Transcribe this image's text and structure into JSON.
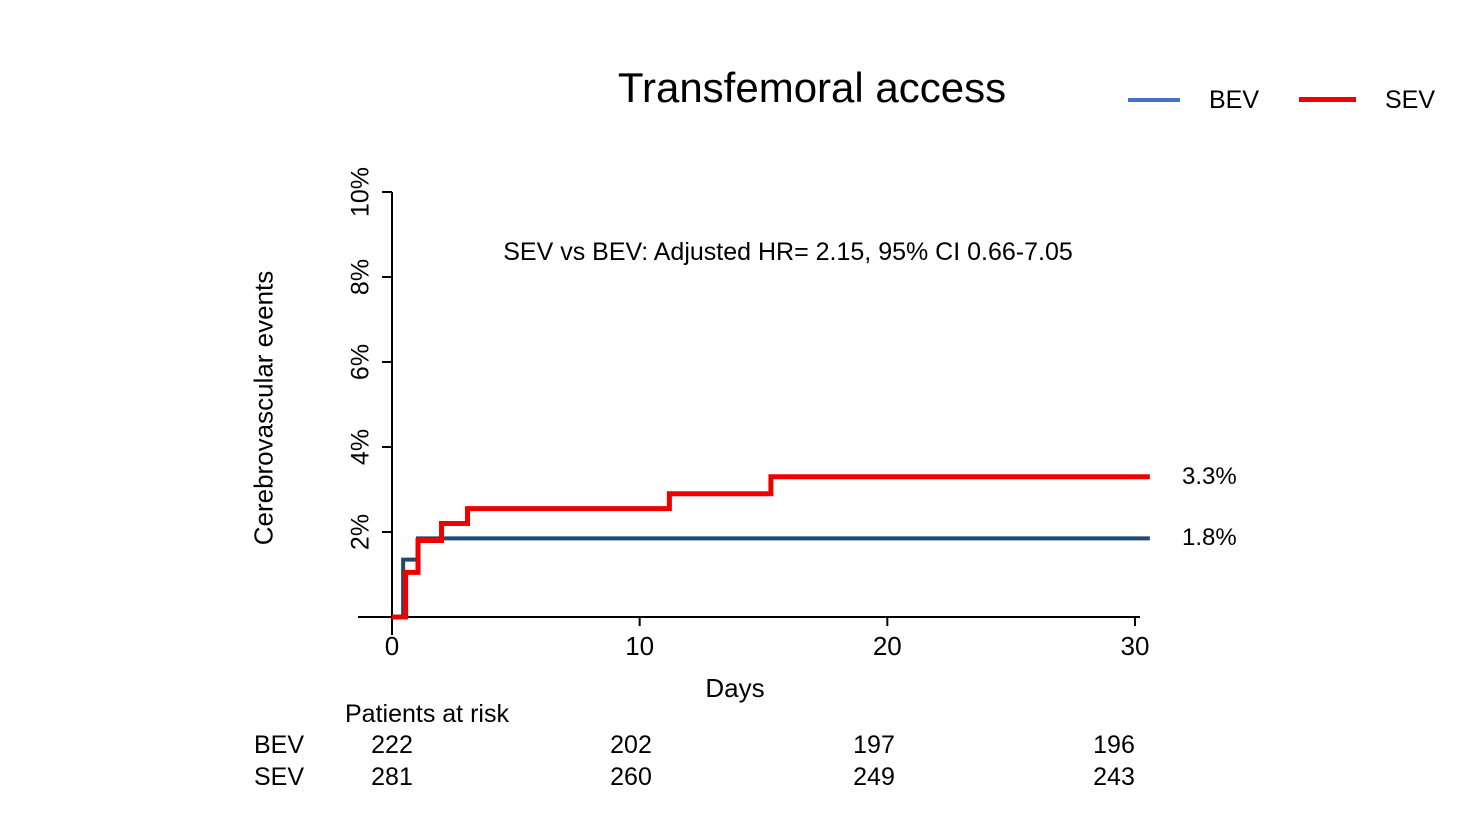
{
  "title": "Transfemoral access",
  "legend": {
    "position": "top-right",
    "items": [
      {
        "label": "BEV",
        "color": "#4472C4"
      },
      {
        "label": "SEV",
        "color": "#EF0000"
      }
    ]
  },
  "annotation": "SEV vs BEV: Adjusted HR= 2.15, 95% CI 0.66-7.05",
  "chart_data": {
    "type": "line",
    "subtype": "kaplan-meier-cumulative-incidence-step",
    "title": "Transfemoral access",
    "xlabel": "Days",
    "ylabel": "Cerebrovascular events",
    "xlim": [
      0,
      30.7
    ],
    "ylim": [
      0,
      10
    ],
    "grid": false,
    "legend_position": "top-right",
    "axis_color": "#000000",
    "xticks": [
      {
        "value": 0,
        "label": "0"
      },
      {
        "value": 10,
        "label": "10"
      },
      {
        "value": 20,
        "label": "20"
      },
      {
        "value": 30,
        "label": "30"
      }
    ],
    "yticks": [
      {
        "value": 2,
        "label": "2%"
      },
      {
        "value": 4,
        "label": "4%"
      },
      {
        "value": 6,
        "label": "6%"
      },
      {
        "value": 8,
        "label": "8%"
      },
      {
        "value": 10,
        "label": "10%"
      }
    ],
    "annotation": "SEV vs BEV: Adjusted HR= 2.15, 95% CI 0.66-7.05",
    "series": [
      {
        "name": "BEV",
        "curve_color": "#1E4A6D",
        "legend_color": "#4472C4",
        "end_label": "1.8%",
        "final_value_pct": 1.8,
        "steps_day_pct": [
          [
            0,
            0
          ],
          [
            0.45,
            0
          ],
          [
            0.45,
            1.35
          ],
          [
            1.05,
            1.35
          ],
          [
            1.05,
            1.85
          ],
          [
            30.6,
            1.85
          ]
        ]
      },
      {
        "name": "SEV",
        "curve_color": "#EF0000",
        "legend_color": "#EF0000",
        "end_label": "3.3%",
        "final_value_pct": 3.3,
        "steps_day_pct": [
          [
            0,
            0
          ],
          [
            0.55,
            0
          ],
          [
            0.55,
            1.05
          ],
          [
            1.05,
            1.05
          ],
          [
            1.05,
            1.8
          ],
          [
            2.0,
            1.8
          ],
          [
            2.0,
            2.2
          ],
          [
            3.05,
            2.2
          ],
          [
            3.05,
            2.55
          ],
          [
            11.2,
            2.55
          ],
          [
            11.2,
            2.9
          ],
          [
            15.3,
            2.9
          ],
          [
            15.3,
            3.3
          ],
          [
            30.6,
            3.3
          ]
        ]
      }
    ]
  },
  "risk_table": {
    "header": "Patients at risk",
    "time_points": [
      0,
      10,
      20,
      30
    ],
    "rows": [
      {
        "label": "BEV",
        "counts": [
          "222",
          "202",
          "197",
          "196"
        ]
      },
      {
        "label": "SEV",
        "counts": [
          "281",
          "260",
          "249",
          "243"
        ]
      }
    ]
  }
}
